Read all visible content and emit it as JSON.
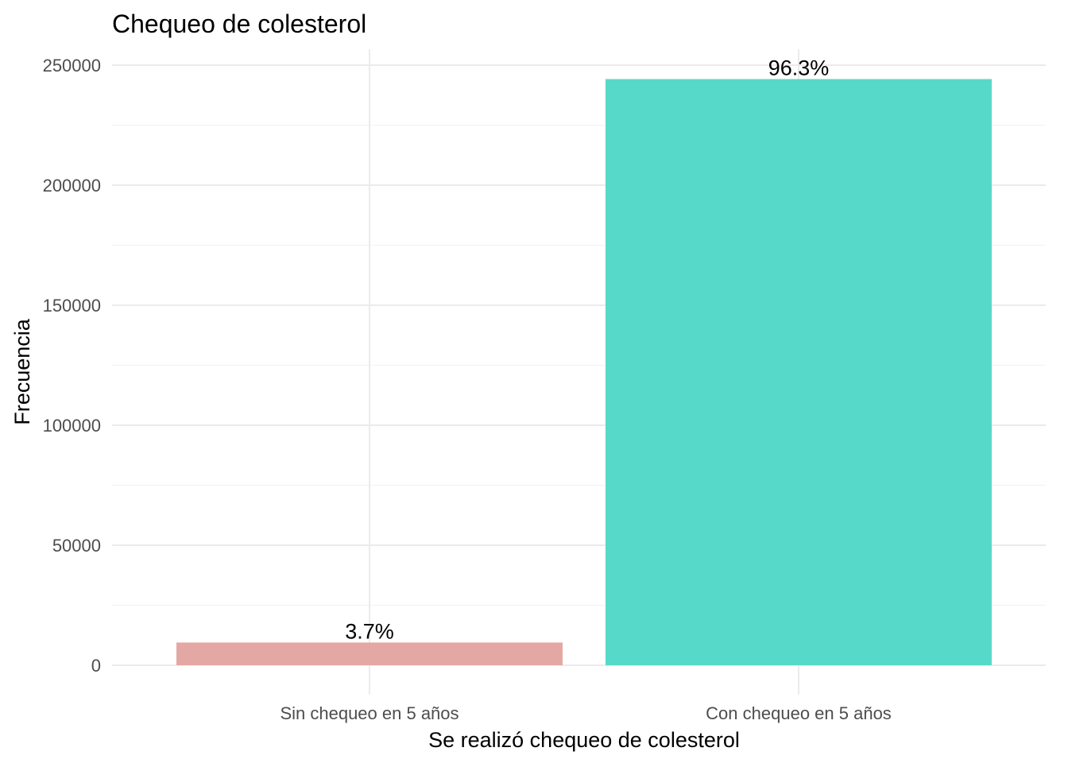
{
  "chart_data": {
    "type": "bar",
    "title": "Chequeo de colesterol",
    "xlabel": "Se realizó chequeo de colesterol",
    "ylabel": "Frecuencia",
    "categories": [
      "Sin chequeo en 5 años",
      "Con chequeo en 5 años"
    ],
    "values": [
      9470,
      244210
    ],
    "data_labels": [
      "3.7%",
      "96.3%"
    ],
    "colors": [
      "#e3a8a3",
      "#57d9ca"
    ],
    "ylim": [
      0,
      250000
    ],
    "yticks": [
      0,
      50000,
      100000,
      150000,
      200000,
      250000
    ],
    "ytick_labels": [
      "0",
      "50000",
      "100000",
      "150000",
      "200000",
      "250000"
    ],
    "grid": true,
    "legend": false
  }
}
